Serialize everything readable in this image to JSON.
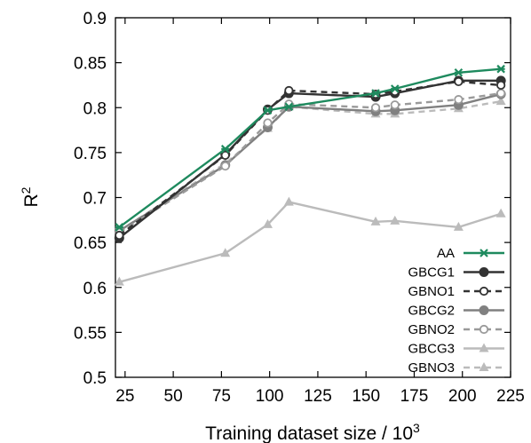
{
  "chart_data": {
    "type": "line",
    "xlabel": "Training dataset size / 10",
    "xlabel_sup": "3",
    "ylabel": "R",
    "ylabel_sup": "2",
    "xlim": [
      20,
      225
    ],
    "ylim": [
      0.5,
      0.9
    ],
    "xticks": [
      25,
      50,
      75,
      100,
      125,
      150,
      175,
      200,
      225
    ],
    "yticks": [
      "0.5",
      "0.55",
      "0.6",
      "0.65",
      "0.7",
      "0.75",
      "0.8",
      "0.85",
      "0.9"
    ],
    "grid": false,
    "legend": "bottom-right",
    "series": [
      {
        "name": "AA",
        "color": "#1e8a5e",
        "dash": "solid",
        "marker": "x-star",
        "x": [
          22,
          77,
          99,
          110,
          155,
          165,
          198,
          220
        ],
        "y": [
          0.667,
          0.754,
          0.797,
          0.801,
          0.816,
          0.821,
          0.839,
          0.843
        ]
      },
      {
        "name": "GBCG1",
        "color": "#333333",
        "dash": "solid",
        "marker": "circle-filled",
        "x": [
          22,
          77,
          99,
          110,
          155,
          165,
          198,
          220
        ],
        "y": [
          0.655,
          0.748,
          0.798,
          0.816,
          0.812,
          0.816,
          0.83,
          0.83
        ]
      },
      {
        "name": "GBNO1",
        "color": "#333333",
        "dash": "dashed",
        "marker": "circle-open",
        "x": [
          22,
          77,
          99,
          110,
          155,
          165,
          198,
          220
        ],
        "y": [
          0.658,
          0.747,
          0.797,
          0.819,
          0.815,
          0.818,
          0.829,
          0.825
        ]
      },
      {
        "name": "GBCG2",
        "color": "#808080",
        "dash": "solid",
        "marker": "circle-filled",
        "x": [
          22,
          77,
          99,
          110,
          155,
          165,
          198,
          220
        ],
        "y": [
          0.663,
          0.736,
          0.778,
          0.801,
          0.796,
          0.797,
          0.803,
          0.815
        ]
      },
      {
        "name": "GBNO2",
        "color": "#9a9a9a",
        "dash": "dashed",
        "marker": "circle-open",
        "x": [
          22,
          77,
          99,
          110,
          155,
          165,
          198,
          220
        ],
        "y": [
          0.661,
          0.735,
          0.783,
          0.804,
          0.8,
          0.803,
          0.809,
          0.816
        ]
      },
      {
        "name": "GBCG3",
        "color": "#bbbbbb",
        "dash": "solid",
        "marker": "triangle",
        "x": [
          22,
          77,
          99,
          110,
          155,
          165,
          198,
          220
        ],
        "y": [
          0.606,
          0.638,
          0.67,
          0.695,
          0.673,
          0.674,
          0.667,
          0.682
        ]
      },
      {
        "name": "GBNO3",
        "color": "#bbbbbb",
        "dash": "dashed",
        "marker": "triangle",
        "x": [
          22,
          77,
          99,
          110,
          155,
          165,
          198,
          220
        ],
        "y": [
          0.663,
          0.738,
          0.777,
          0.801,
          0.793,
          0.793,
          0.799,
          0.807
        ]
      }
    ]
  }
}
